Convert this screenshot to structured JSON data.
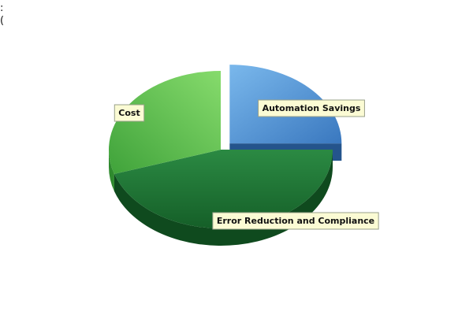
{
  "header": {
    "line1": ":",
    "line2": "("
  },
  "chart_data": {
    "type": "pie",
    "style": "3d-exploded",
    "title": "",
    "categories": [
      "Automation Savings",
      "Error Reduction and Compliance",
      "Cost"
    ],
    "values": [
      25,
      45,
      30
    ],
    "colors": [
      "#5b9ad6",
      "#1f7a35",
      "#5cbf4a"
    ],
    "legend": "none",
    "labels_on_slices": true
  }
}
